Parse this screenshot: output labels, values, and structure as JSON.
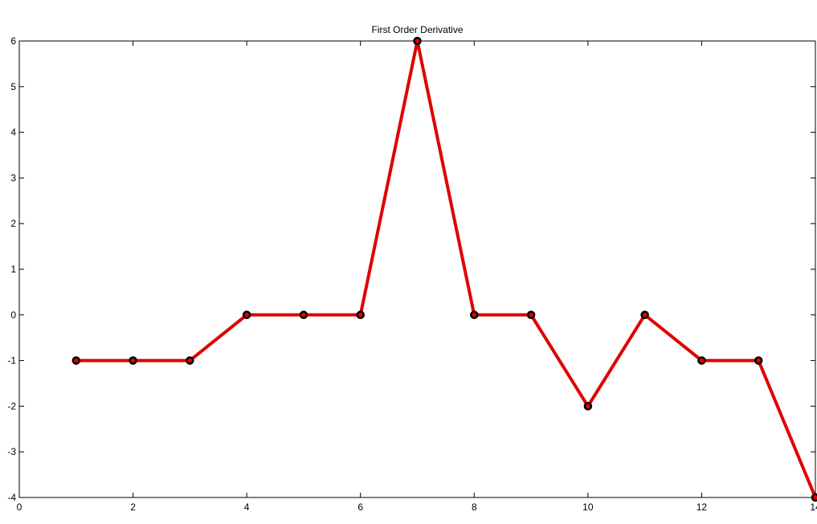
{
  "chart_data": {
    "type": "line",
    "title": "First Order Derivative",
    "xlabel": "",
    "ylabel": "",
    "xlim": [
      0,
      14
    ],
    "ylim": [
      -4,
      6
    ],
    "x_ticks": [
      0,
      2,
      4,
      6,
      8,
      10,
      12,
      14
    ],
    "x_tick_labels": [
      "0",
      "2",
      "4",
      "6",
      "8",
      "10",
      "12",
      "14"
    ],
    "y_ticks": [
      -4,
      -3,
      -2,
      -1,
      0,
      1,
      2,
      3,
      4,
      5,
      6
    ],
    "y_tick_labels": [
      "-4",
      "-3",
      "-2",
      "-1",
      "0",
      "1",
      "2",
      "3",
      "4",
      "5",
      "6"
    ],
    "grid": false,
    "legend": "none",
    "series": [
      {
        "x": [
          1,
          2,
          3,
          4,
          5,
          6,
          7,
          8,
          9,
          10,
          11,
          12,
          13,
          14
        ],
        "values": [
          -1,
          -1,
          -1,
          0,
          0,
          0,
          6,
          0,
          0,
          -2,
          0,
          -1,
          -1,
          -4
        ],
        "line_color": "#e00000",
        "marker_color": "#000000",
        "marker": "circle"
      }
    ]
  }
}
